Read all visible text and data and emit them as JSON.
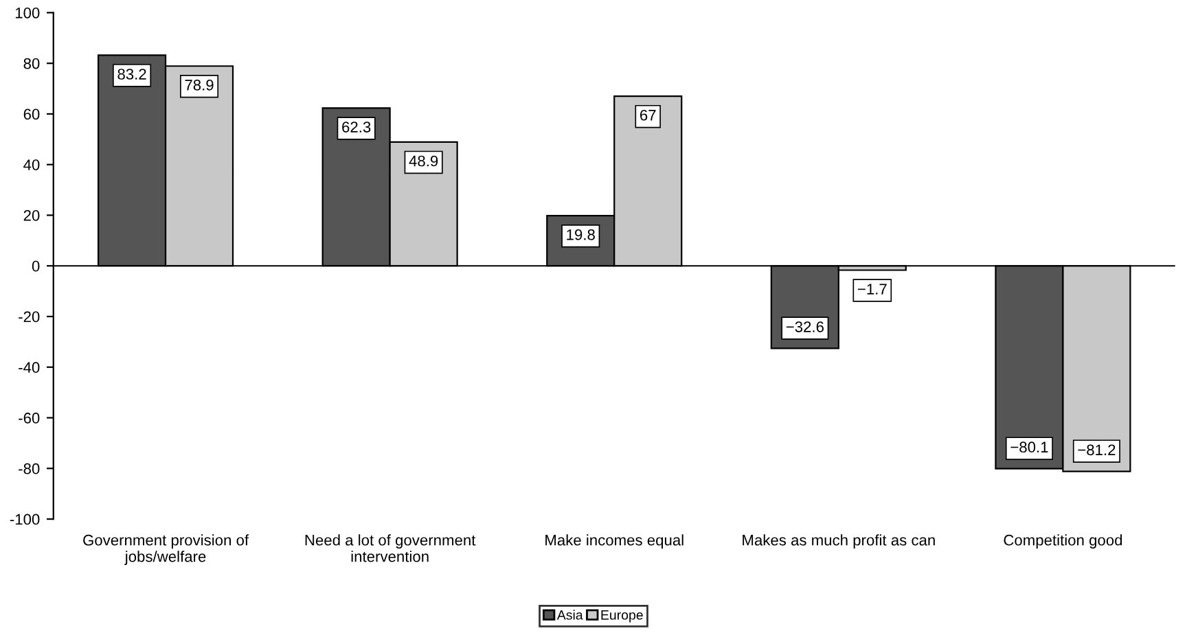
{
  "chart_data": {
    "type": "bar",
    "categories": [
      "Government provision of\njobs/welfare",
      "Need a lot of government\nintervention",
      "Make incomes equal",
      "Makes as much profit as can",
      "Competition good"
    ],
    "series": [
      {
        "name": "Asia",
        "color": "#555555",
        "values": [
          83.2,
          62.3,
          19.8,
          -32.6,
          -80.1
        ],
        "value_labels": [
          "83.2",
          "62.3",
          "19.8",
          "−32.6",
          "−80.1"
        ]
      },
      {
        "name": "Europe",
        "color": "#c8c8c8",
        "values": [
          78.9,
          48.9,
          67,
          -1.7,
          -81.2
        ],
        "value_labels": [
          "78.9",
          "48.9",
          "67",
          "−1.7",
          "−81.2"
        ]
      }
    ],
    "ylim": [
      -100,
      100
    ],
    "yticks": [
      -100,
      -80,
      -60,
      -40,
      -20,
      0,
      20,
      40,
      60,
      80,
      100
    ],
    "legend": "bottom"
  }
}
